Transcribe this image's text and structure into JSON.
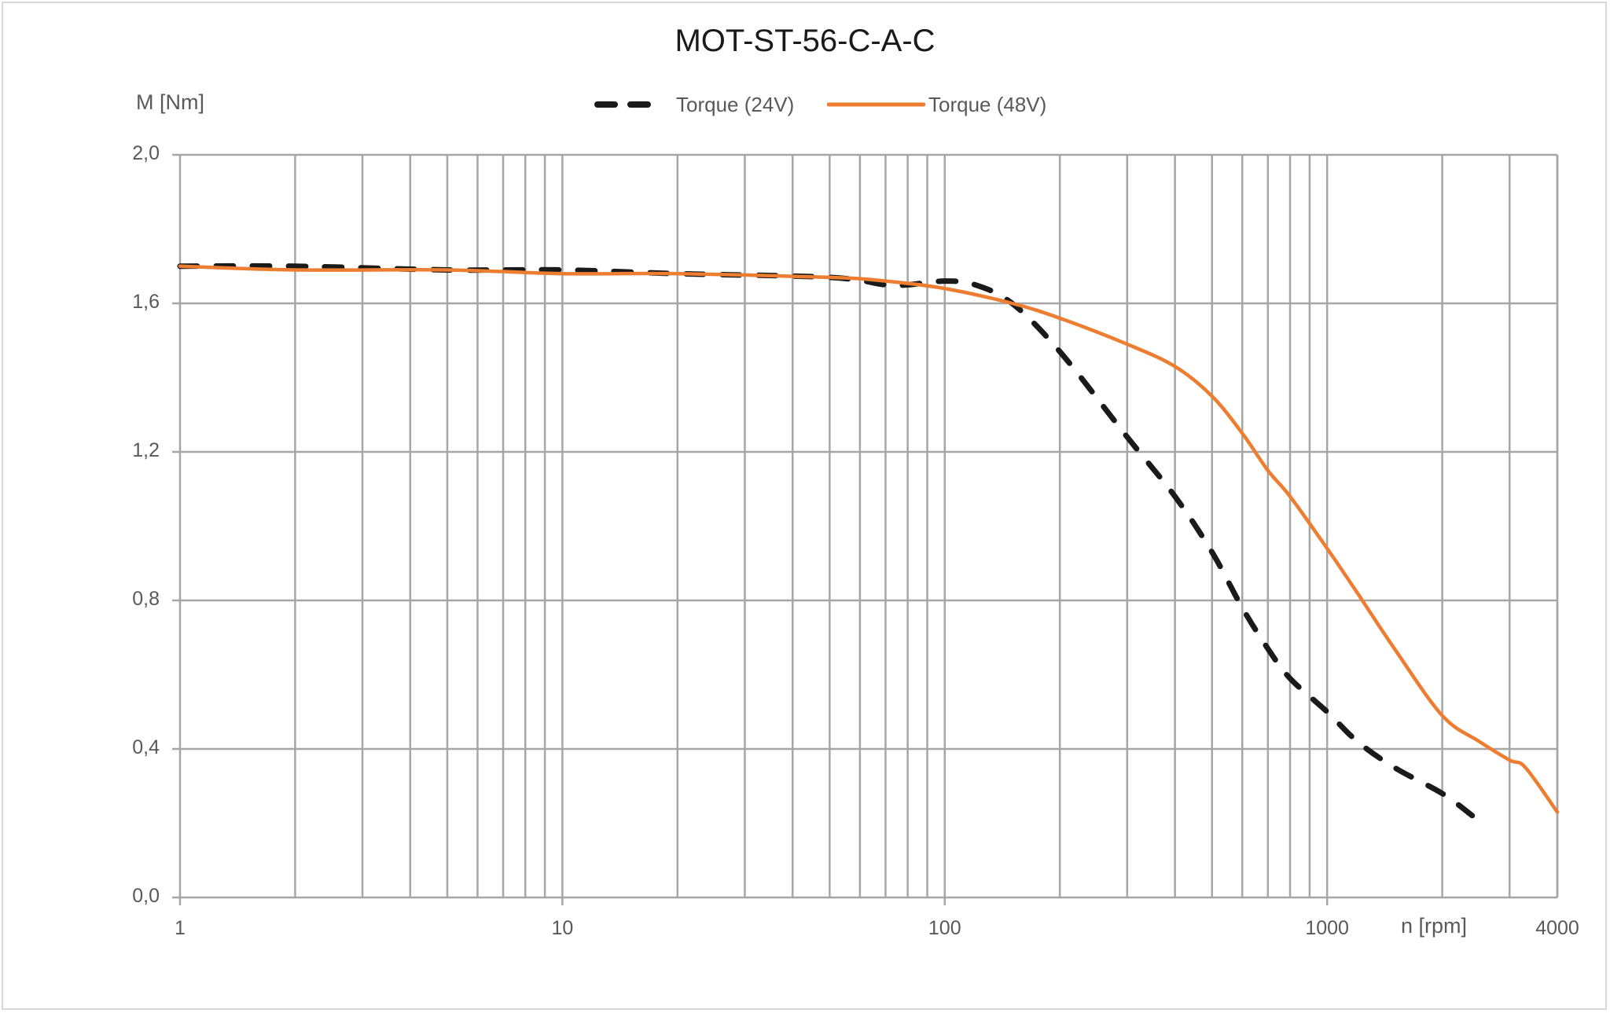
{
  "chart_data": {
    "type": "line",
    "title": "MOT-ST-56-C-A-C",
    "xlabel": "n [rpm]",
    "ylabel": "M [Nm]",
    "xscale": "log",
    "xlim": [
      1,
      4000
    ],
    "ylim": [
      0,
      2.0
    ],
    "grid": true,
    "legend_position": "top",
    "x_tick_labels": [
      "1",
      "10",
      "100",
      "1000",
      "4000"
    ],
    "y_tick_labels": [
      "0,0",
      "0,4",
      "0,8",
      "1,2",
      "1,6",
      "2,0"
    ],
    "y_ticks": [
      0.0,
      0.4,
      0.8,
      1.2,
      1.6,
      2.0
    ],
    "series": [
      {
        "name": "Torque (24V)",
        "style": "dashed",
        "color": "#1a1a1a",
        "x": [
          1,
          2,
          5,
          10,
          20,
          50,
          70,
          80,
          100,
          120,
          150,
          200,
          300,
          400,
          500,
          600,
          700,
          800,
          1000,
          1200,
          1500,
          2000,
          2400
        ],
        "y": [
          1.7,
          1.7,
          1.69,
          1.69,
          1.68,
          1.67,
          1.65,
          1.65,
          1.66,
          1.65,
          1.6,
          1.47,
          1.24,
          1.08,
          0.93,
          0.78,
          0.67,
          0.59,
          0.5,
          0.42,
          0.35,
          0.28,
          0.22
        ]
      },
      {
        "name": "Torque (48V)",
        "style": "solid",
        "color": "#ed7d31",
        "x": [
          1,
          2,
          5,
          10,
          20,
          50,
          70,
          100,
          150,
          200,
          300,
          400,
          500,
          600,
          700,
          800,
          1000,
          1200,
          1500,
          2000,
          2500,
          3000,
          3300,
          4000
        ],
        "y": [
          1.7,
          1.69,
          1.69,
          1.68,
          1.68,
          1.67,
          1.66,
          1.64,
          1.6,
          1.56,
          1.49,
          1.43,
          1.35,
          1.25,
          1.15,
          1.08,
          0.94,
          0.82,
          0.67,
          0.49,
          0.42,
          0.37,
          0.35,
          0.23
        ]
      }
    ]
  },
  "legend": {
    "items": [
      {
        "label": "Torque (24V)",
        "color": "#1a1a1a",
        "style": "dashed"
      },
      {
        "label": "Torque (48V)",
        "color": "#ed7d31",
        "style": "solid"
      }
    ]
  },
  "colors": {
    "grid": "#a6a6a6",
    "axis_text": "#595959",
    "title_text": "#1a1a1a",
    "series_24v": "#1a1a1a",
    "series_48v": "#ed7d31"
  }
}
